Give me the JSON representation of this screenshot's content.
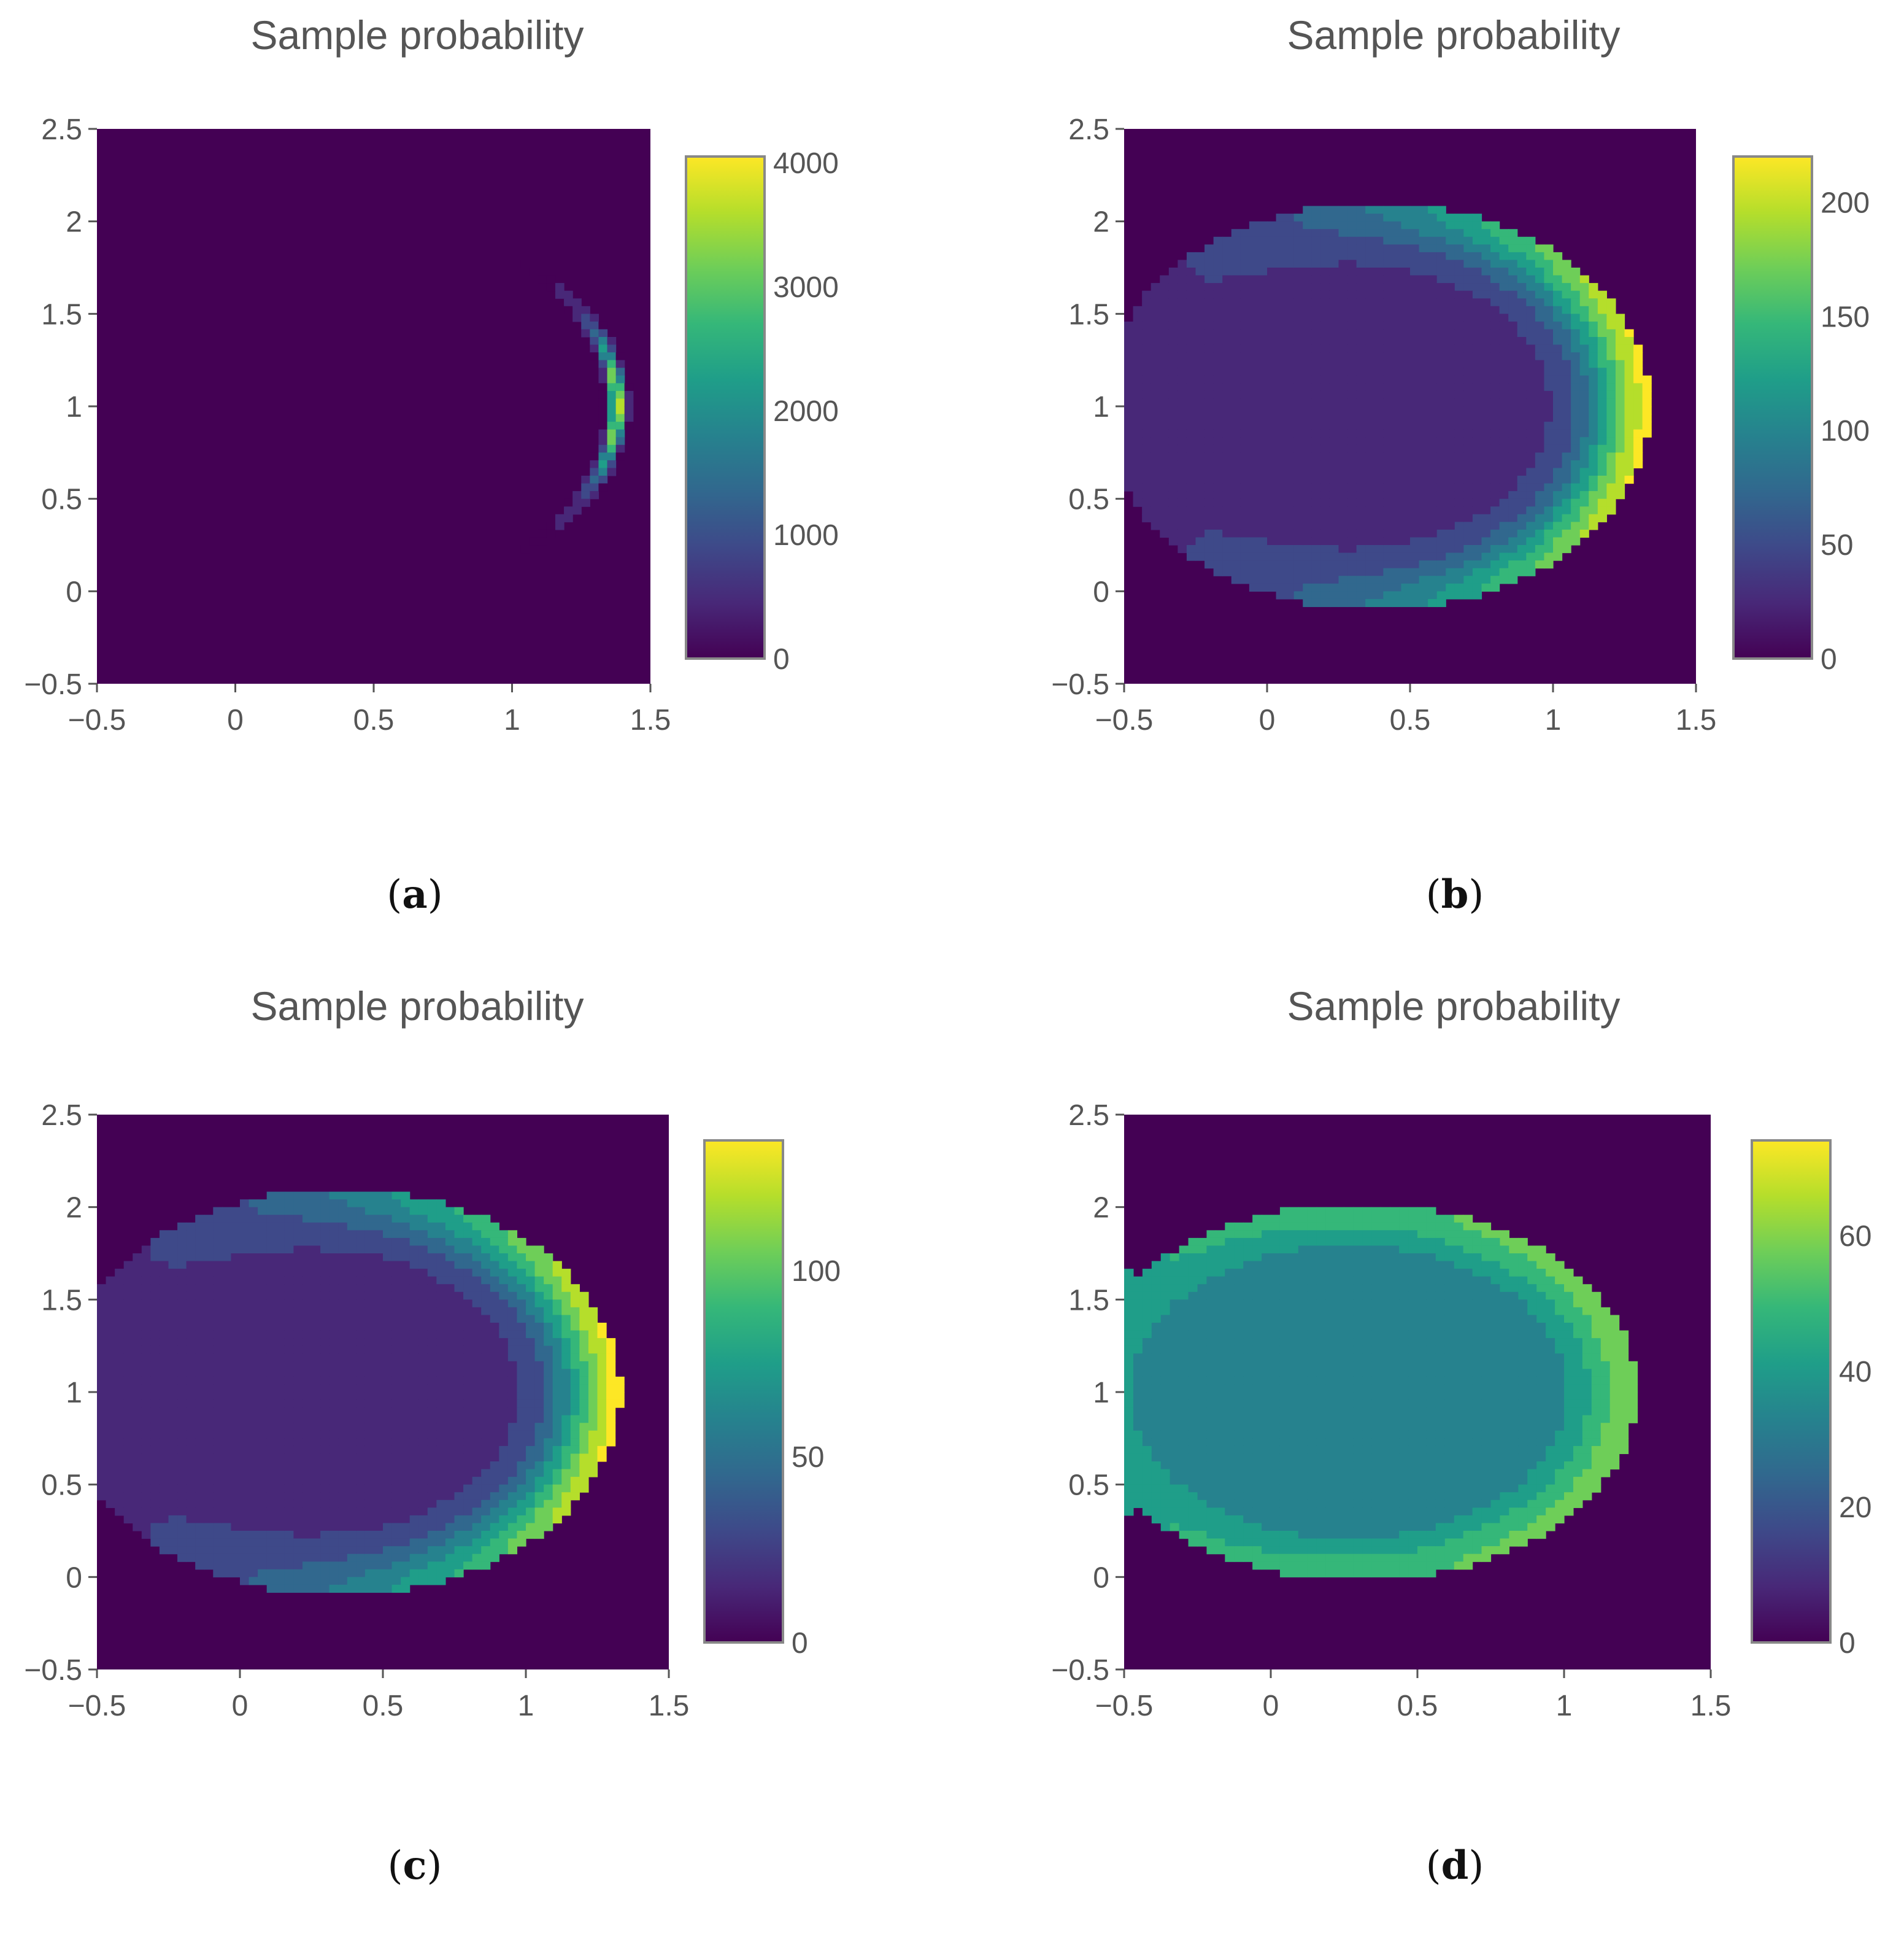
{
  "colors": {
    "viridis": [
      "#440154",
      "#482878",
      "#3e4989",
      "#31688e",
      "#26828e",
      "#1f9e89",
      "#35b779",
      "#6ece58",
      "#b5de2b",
      "#fde725"
    ],
    "background": "#440154",
    "axis": "#555555"
  },
  "chart_data": [
    {
      "id": "a",
      "type": "heatmap",
      "title": "Sample probability",
      "caption": "a",
      "xlim": [
        -0.5,
        1.5
      ],
      "ylim": [
        -0.5,
        2.5
      ],
      "xticks": [
        "−0.5",
        "0",
        "0.5",
        "1",
        "1.5"
      ],
      "yticks": [
        "−0.5",
        "0",
        "0.5",
        "1",
        "1.5",
        "2",
        "2.5"
      ],
      "colorbar": {
        "min": 0,
        "max": 4050,
        "ticks": [
          "0",
          "1000",
          "2000",
          "3000",
          "4000"
        ],
        "tick_values": [
          0,
          1000,
          2000,
          3000,
          4000
        ]
      },
      "distribution": {
        "shape": "crescent",
        "center": [
          0.35,
          1.0
        ],
        "rx": 1.03,
        "ry": 1.05,
        "band": 0.02,
        "peak": 4000
      }
    },
    {
      "id": "b",
      "type": "heatmap",
      "title": "Sample probability",
      "caption": "b",
      "xlim": [
        -0.5,
        1.5
      ],
      "ylim": [
        -0.5,
        2.5
      ],
      "xticks": [
        "−0.5",
        "0",
        "0.5",
        "1",
        "1.5"
      ],
      "yticks": [
        "−0.5",
        "0",
        "0.5",
        "1",
        "1.5",
        "2",
        "2.5"
      ],
      "colorbar": {
        "min": 0,
        "max": 220,
        "ticks": [
          "0",
          "50",
          "100",
          "150",
          "200"
        ],
        "tick_values": [
          0,
          50,
          100,
          150,
          200
        ]
      },
      "distribution": {
        "shape": "ellipse",
        "center": [
          0.38,
          1.0
        ],
        "rx": 0.96,
        "ry": 1.1,
        "peak": 200
      }
    },
    {
      "id": "c",
      "type": "heatmap",
      "title": "Sample probability",
      "caption": "c",
      "xlim": [
        -0.5,
        1.5
      ],
      "ylim": [
        -0.5,
        2.5
      ],
      "xticks": [
        "−0.5",
        "0",
        "0.5",
        "1",
        "1.5"
      ],
      "yticks": [
        "−0.5",
        "0",
        "0.5",
        "1",
        "1.5",
        "2",
        "2.5"
      ],
      "colorbar": {
        "min": 0,
        "max": 135,
        "ticks": [
          "0",
          "50",
          "100"
        ],
        "tick_values": [
          0,
          50,
          100
        ]
      },
      "distribution": {
        "shape": "ellipse",
        "center": [
          0.35,
          1.0
        ],
        "rx": 0.98,
        "ry": 1.1,
        "peak": 130
      }
    },
    {
      "id": "d",
      "type": "heatmap",
      "title": "Sample probability",
      "caption": "d",
      "xlim": [
        -0.5,
        1.5
      ],
      "ylim": [
        -0.5,
        2.5
      ],
      "xticks": [
        "−0.5",
        "0",
        "0.5",
        "1",
        "1.5"
      ],
      "yticks": [
        "−0.5",
        "0",
        "0.5",
        "1",
        "1.5",
        "2",
        "2.5"
      ],
      "colorbar": {
        "min": 0,
        "max": 74,
        "ticks": [
          "0",
          "20",
          "40",
          "60"
        ],
        "tick_values": [
          0,
          20,
          40,
          60
        ]
      },
      "distribution": {
        "shape": "wide-ellipse",
        "center": [
          0.3,
          1.0
        ],
        "rx": 0.95,
        "ry": 1.02,
        "peak": 65,
        "left_edge_stripe": true
      }
    }
  ]
}
